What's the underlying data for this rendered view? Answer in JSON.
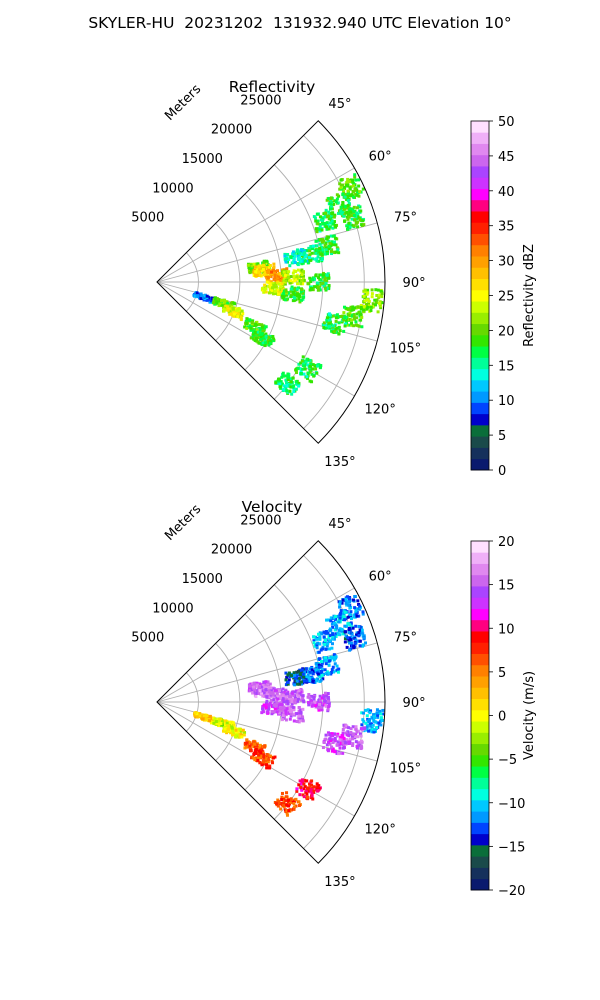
{
  "suptitle": "SKYLER-HU  20231202  131932.940 UTC Elevation 10°",
  "chart_data": [
    {
      "type": "heatmap",
      "subtype": "polar-sector-radar-ppi",
      "title": "Reflectivity",
      "radial_label": "Meters",
      "r_ticks": [
        "5000",
        "10000",
        "15000",
        "20000",
        "25000"
      ],
      "r_tick_values": [
        5000,
        10000,
        15000,
        20000,
        25000
      ],
      "rlim": [
        0,
        27500
      ],
      "theta_ticks": [
        "45°",
        "60°",
        "75°",
        "90°",
        "105°",
        "120°",
        "135°"
      ],
      "theta_tick_values": [
        45,
        60,
        75,
        90,
        105,
        120,
        135
      ],
      "theta_range_deg": [
        45,
        135
      ],
      "grid": true,
      "colorbar": {
        "label": "Reflectivity dBZ",
        "ticks": [
          "0",
          "5",
          "10",
          "15",
          "20",
          "25",
          "30",
          "35",
          "40",
          "45",
          "50"
        ],
        "range": [
          0,
          50
        ],
        "colors": [
          "#0a1a6e",
          "#15305c",
          "#1a4a4a",
          "#0a6e3a",
          "#0000cc",
          "#0044ff",
          "#0099ff",
          "#00c8ff",
          "#00ffe0",
          "#00ff99",
          "#00ff44",
          "#33e600",
          "#66d900",
          "#99ee00",
          "#ccff00",
          "#ffff00",
          "#ffe000",
          "#ffc000",
          "#ffa000",
          "#ff8000",
          "#ff5000",
          "#ff2000",
          "#ff0000",
          "#ff0080",
          "#ff00ff",
          "#cc33ff",
          "#aa44ff",
          "#cc66ee",
          "#e088f0",
          "#f0b0f8",
          "#ffe0ff"
        ]
      },
      "echoes": [
        {
          "az": 64,
          "r": 26000,
          "dbz": 19
        },
        {
          "az": 67,
          "r": 24000,
          "dbz": 18
        },
        {
          "az": 70,
          "r": 21500,
          "dbz": 17
        },
        {
          "az": 72,
          "r": 25000,
          "dbz": 18
        },
        {
          "az": 78,
          "r": 21000,
          "dbz": 18
        },
        {
          "az": 80,
          "r": 19000,
          "dbz": 17
        },
        {
          "az": 80,
          "r": 17000,
          "dbz": 14
        },
        {
          "az": 82,
          "r": 12500,
          "dbz": 20
        },
        {
          "az": 84,
          "r": 13000,
          "dbz": 27
        },
        {
          "az": 87,
          "r": 14500,
          "dbz": 30
        },
        {
          "az": 88,
          "r": 16500,
          "dbz": 22
        },
        {
          "az": 90,
          "r": 19500,
          "dbz": 18
        },
        {
          "az": 93,
          "r": 14000,
          "dbz": 24
        },
        {
          "az": 95,
          "r": 16500,
          "dbz": 18
        },
        {
          "az": 95,
          "r": 26000,
          "dbz": 21
        },
        {
          "az": 100,
          "r": 24000,
          "dbz": 19
        },
        {
          "az": 103,
          "r": 22000,
          "dbz": 17
        },
        {
          "az": 108,
          "r": 6000,
          "dbz": 10
        },
        {
          "az": 108,
          "r": 8500,
          "dbz": 20
        },
        {
          "az": 111,
          "r": 10000,
          "dbz": 24
        },
        {
          "az": 115,
          "r": 13000,
          "dbz": 19
        },
        {
          "az": 118,
          "r": 14500,
          "dbz": 18
        },
        {
          "az": 120,
          "r": 21000,
          "dbz": 17
        },
        {
          "az": 128,
          "r": 20000,
          "dbz": 16
        }
      ]
    },
    {
      "type": "heatmap",
      "subtype": "polar-sector-radar-ppi",
      "title": "Velocity",
      "radial_label": "Meters",
      "r_ticks": [
        "5000",
        "10000",
        "15000",
        "20000",
        "25000"
      ],
      "r_tick_values": [
        5000,
        10000,
        15000,
        20000,
        25000
      ],
      "rlim": [
        0,
        27500
      ],
      "theta_ticks": [
        "45°",
        "60°",
        "75°",
        "90°",
        "105°",
        "120°",
        "135°"
      ],
      "theta_tick_values": [
        45,
        60,
        75,
        90,
        105,
        120,
        135
      ],
      "theta_range_deg": [
        45,
        135
      ],
      "grid": true,
      "colorbar": {
        "label": "Velocity (m/s)",
        "ticks": [
          "−20",
          "−15",
          "−10",
          "−5",
          "0",
          "5",
          "10",
          "15",
          "20"
        ],
        "range": [
          -20,
          20
        ],
        "colors": [
          "#0a1a6e",
          "#15305c",
          "#1a4a4a",
          "#0a6e3a",
          "#0000cc",
          "#0044ff",
          "#0099ff",
          "#00c8ff",
          "#00ffe0",
          "#00ff99",
          "#00ff44",
          "#33e600",
          "#66d900",
          "#99ee00",
          "#ccff00",
          "#ffff00",
          "#ffe000",
          "#ffc000",
          "#ffa000",
          "#ff8000",
          "#ff5000",
          "#ff2000",
          "#ff0000",
          "#ff0080",
          "#ff00ff",
          "#cc33ff",
          "#aa44ff",
          "#cc66ee",
          "#e088f0",
          "#f0b0f8",
          "#ffe0ff"
        ]
      },
      "echoes": [
        {
          "az": 64,
          "r": 26000,
          "v": -12
        },
        {
          "az": 67,
          "r": 24000,
          "v": -11
        },
        {
          "az": 70,
          "r": 21500,
          "v": -11
        },
        {
          "az": 72,
          "r": 25000,
          "v": -13
        },
        {
          "az": 78,
          "r": 21000,
          "v": -11
        },
        {
          "az": 80,
          "r": 19000,
          "v": -12
        },
        {
          "az": 80,
          "r": 17000,
          "v": -14
        },
        {
          "az": 82,
          "r": 12500,
          "v": 15
        },
        {
          "az": 84,
          "r": 13000,
          "v": 16
        },
        {
          "az": 87,
          "r": 14500,
          "v": 15
        },
        {
          "az": 88,
          "r": 16500,
          "v": 15
        },
        {
          "az": 90,
          "r": 19500,
          "v": 14
        },
        {
          "az": 93,
          "r": 14000,
          "v": 14
        },
        {
          "az": 95,
          "r": 16500,
          "v": 15
        },
        {
          "az": 95,
          "r": 26000,
          "v": -11
        },
        {
          "az": 100,
          "r": 24000,
          "v": 15
        },
        {
          "az": 103,
          "r": 22000,
          "v": 14
        },
        {
          "az": 108,
          "r": 6000,
          "v": 2
        },
        {
          "az": 108,
          "r": 8500,
          "v": -1
        },
        {
          "az": 111,
          "r": 10000,
          "v": 0
        },
        {
          "az": 115,
          "r": 13000,
          "v": 6
        },
        {
          "az": 118,
          "r": 14500,
          "v": 7
        },
        {
          "az": 120,
          "r": 21000,
          "v": 9
        },
        {
          "az": 128,
          "r": 20000,
          "v": 7
        }
      ]
    }
  ]
}
